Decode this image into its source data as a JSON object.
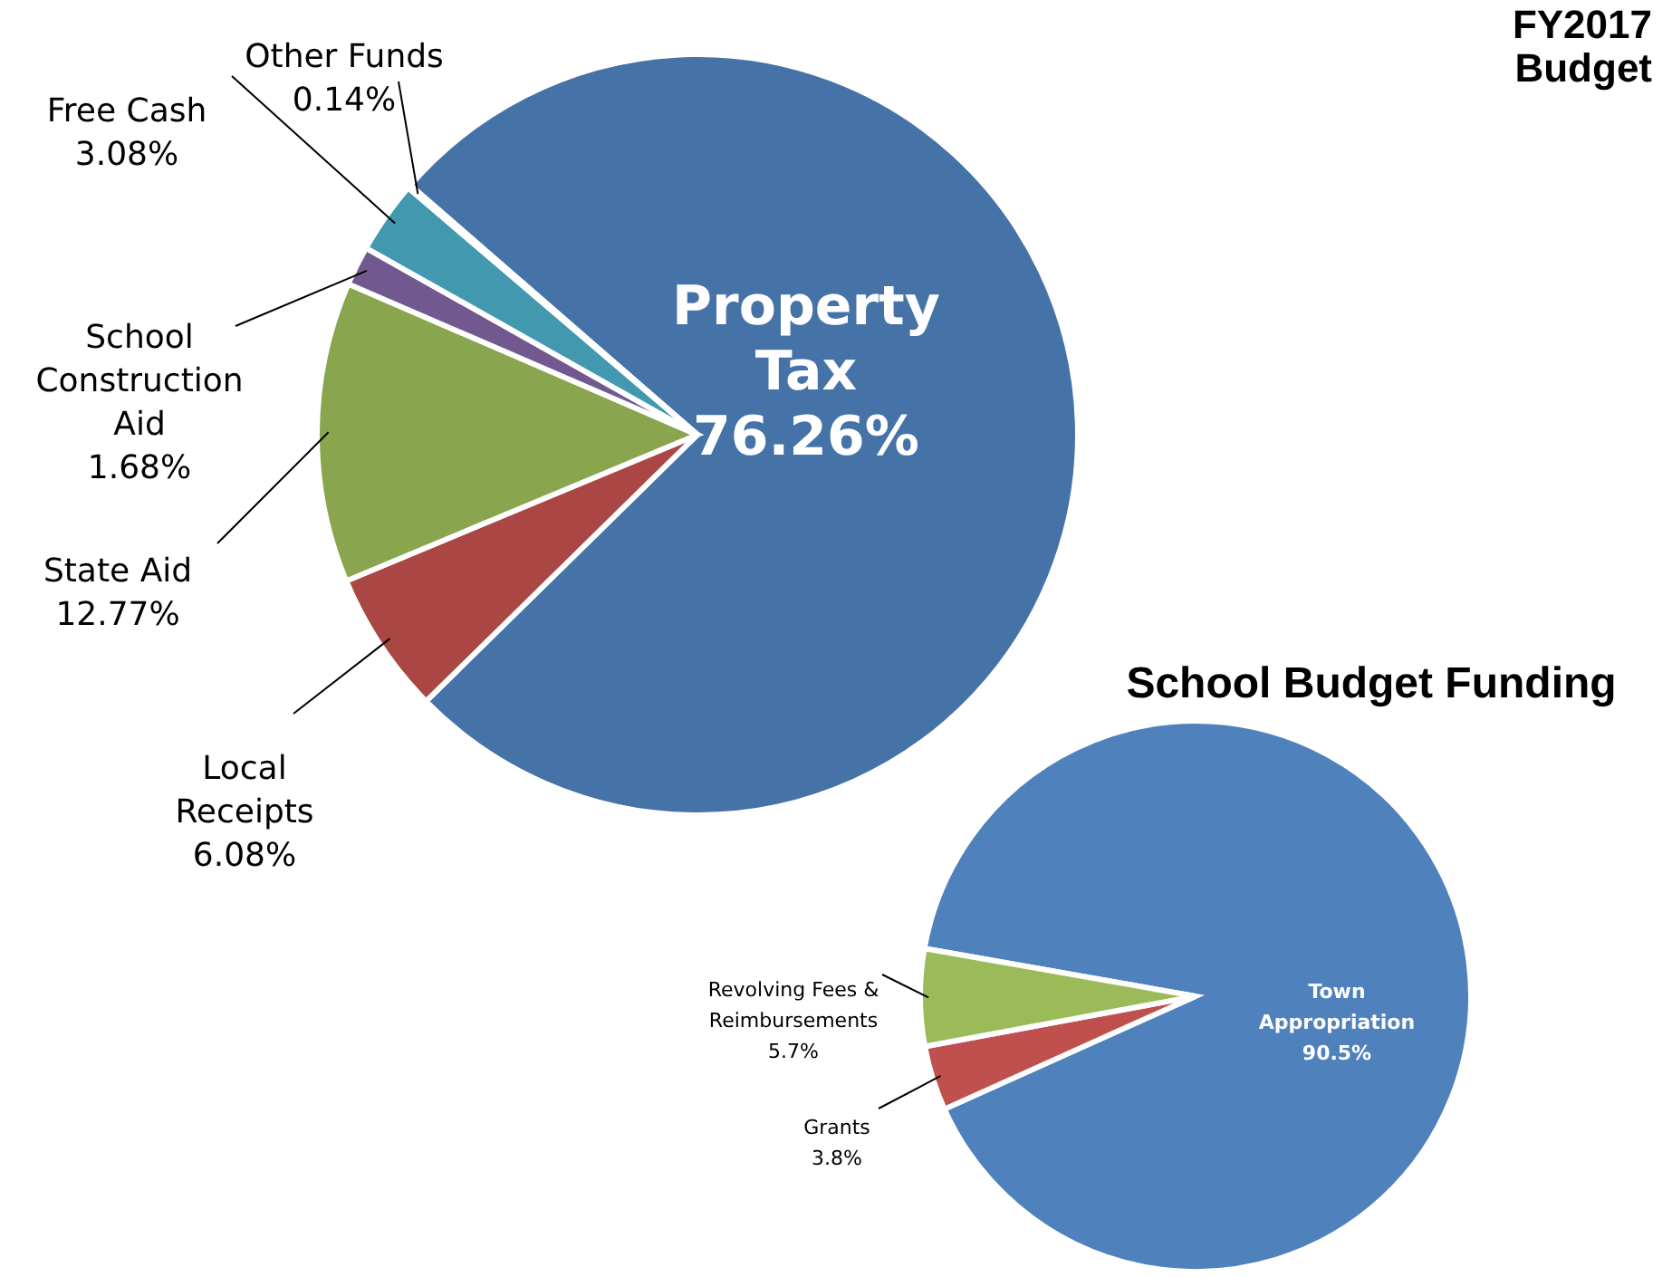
{
  "chart_data": [
    {
      "type": "pie",
      "title": "FY2017 Budget",
      "categories": [
        "Property Tax",
        "Local Receipts",
        "State Aid",
        "School Construction Aid",
        "Free Cash",
        "Other Funds"
      ],
      "values": [
        76.26,
        6.08,
        12.77,
        1.68,
        3.08,
        0.14
      ],
      "value_labels": [
        "76.26%",
        "6.08%",
        "12.77%",
        "1.68%",
        "3.08%",
        "0.14%"
      ],
      "colors": [
        "#4572a7",
        "#aa4643",
        "#89a54e",
        "#71588f",
        "#4198af",
        "#db843d"
      ],
      "legend": false
    },
    {
      "type": "pie",
      "title": "School Budget Funding",
      "categories": [
        "Town Appropriation",
        "Grants",
        "Revolving Fees & Reimbursements"
      ],
      "values": [
        90.5,
        3.8,
        5.7
      ],
      "value_labels": [
        "90.5%",
        "3.8%",
        "5.7%"
      ],
      "colors": [
        "#4f81bd",
        "#c0504d",
        "#9bbb59"
      ],
      "legend": false
    }
  ]
}
